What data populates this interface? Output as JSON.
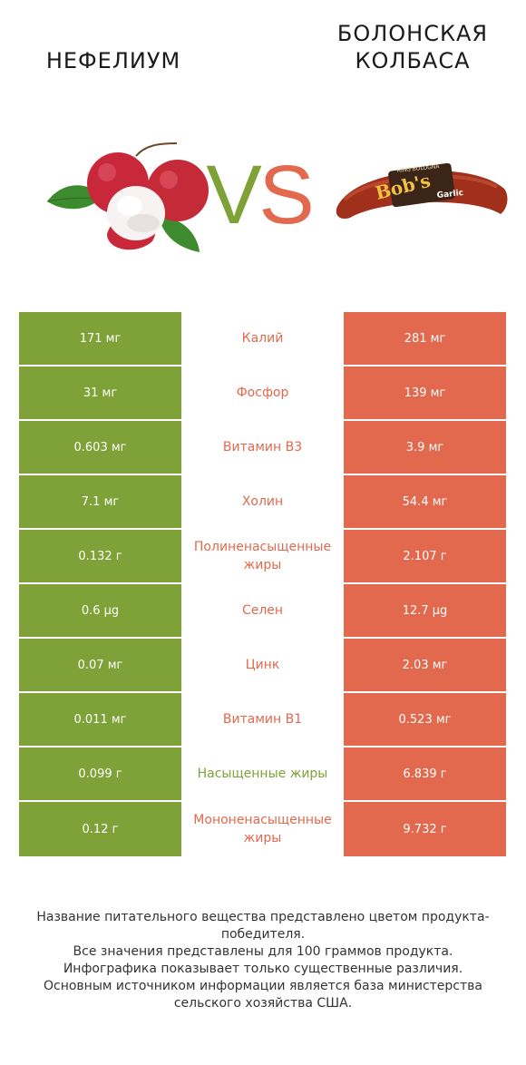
{
  "header": {
    "left_title": "нефелиум",
    "right_title_line1": "болонская",
    "right_title_line2": "колбаса",
    "vs_v": "V",
    "vs_s": "S"
  },
  "colors": {
    "left": "#7ea238",
    "right": "#e2694d"
  },
  "rows": [
    {
      "left": "171 мг",
      "nutrient": "Калий",
      "right": "281 мг",
      "winner": "right"
    },
    {
      "left": "31 мг",
      "nutrient": "Фосфор",
      "right": "139 мг",
      "winner": "right"
    },
    {
      "left": "0.603 мг",
      "nutrient": "Витамин B3",
      "right": "3.9 мг",
      "winner": "right"
    },
    {
      "left": "7.1 мг",
      "nutrient": "Холин",
      "right": "54.4 мг",
      "winner": "right"
    },
    {
      "left": "0.132 г",
      "nutrient": "Полиненасыщенные жиры",
      "right": "2.107 г",
      "winner": "right"
    },
    {
      "left": "0.6 µg",
      "nutrient": "Селен",
      "right": "12.7 µg",
      "winner": "right"
    },
    {
      "left": "0.07 мг",
      "nutrient": "Цинк",
      "right": "2.03 мг",
      "winner": "right"
    },
    {
      "left": "0.011 мг",
      "nutrient": "Витамин B1",
      "right": "0.523 мг",
      "winner": "right"
    },
    {
      "left": "0.099 г",
      "nutrient": "Насыщенные жиры",
      "right": "6.839 г",
      "winner": "left"
    },
    {
      "left": "0.12 г",
      "nutrient": "Мононенасыщенные жиры",
      "right": "9.732 г",
      "winner": "right"
    }
  ],
  "footer": {
    "line1": "Название питательного вещества представлено цветом продукта-победителя.",
    "line2": "Все значения представлены для 100 граммов продукта.",
    "line3": "Инфографика показывает только существенные различия.",
    "line4": "Основным источником информации является база министерства сельского хозяйства США."
  },
  "sausage_label": {
    "brand": "Bob's",
    "band": "RING BOLOGNA",
    "flavor": "Garlic"
  }
}
